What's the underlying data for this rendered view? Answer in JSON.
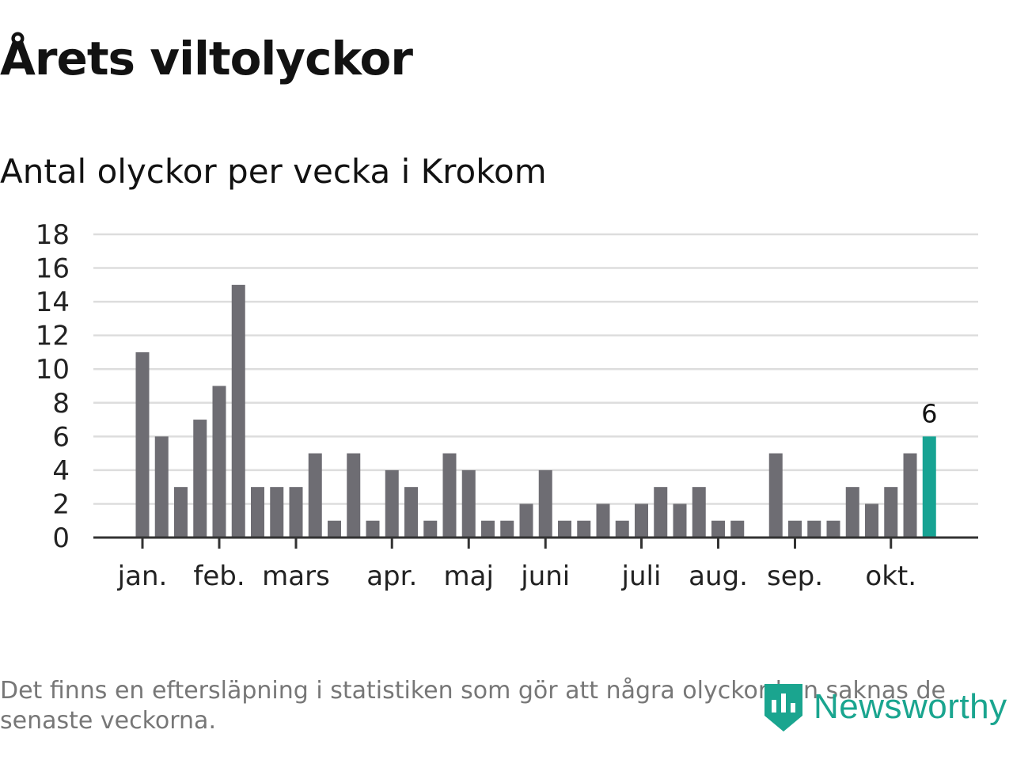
{
  "title": "Årets viltolyckor",
  "subtitle": "Antal olyckor per vecka i Krokom",
  "footnote": "Det finns en eftersläpning i statistiken som gör att några olyckor kan saknas de senaste veckorna.",
  "brand": {
    "name": "Newsworthy",
    "icon": "newsworthy-logo-icon"
  },
  "colors": {
    "bar": "#6e6d73",
    "highlight": "#17a393",
    "grid": "#dddddd",
    "axis": "#333333",
    "brand": "#1aa58f"
  },
  "chart_data": {
    "type": "bar",
    "title": "Antal olyckor per vecka i Krokom",
    "xlabel": "",
    "ylabel": "",
    "ylim": [
      0,
      18
    ],
    "yticks": [
      0,
      2,
      4,
      6,
      8,
      10,
      12,
      14,
      16,
      18
    ],
    "grid": true,
    "week_slots": 42,
    "values": [
      11,
      6,
      3,
      7,
      9,
      15,
      3,
      3,
      3,
      5,
      1,
      5,
      1,
      4,
      3,
      1,
      5,
      4,
      1,
      1,
      2,
      4,
      1,
      1,
      2,
      1,
      2,
      3,
      2,
      3,
      1,
      1,
      null,
      5,
      1,
      1,
      1,
      3,
      2,
      3,
      5,
      6
    ],
    "highlight_index": 41,
    "highlight_label": "6",
    "month_labels": [
      {
        "label": "jan.",
        "week": 0
      },
      {
        "label": "feb.",
        "week": 4
      },
      {
        "label": "mars",
        "week": 8
      },
      {
        "label": "apr.",
        "week": 13
      },
      {
        "label": "maj",
        "week": 17
      },
      {
        "label": "juni",
        "week": 21
      },
      {
        "label": "juli",
        "week": 26
      },
      {
        "label": "aug.",
        "week": 30
      },
      {
        "label": "sep.",
        "week": 34
      },
      {
        "label": "okt.",
        "week": 39
      }
    ]
  }
}
